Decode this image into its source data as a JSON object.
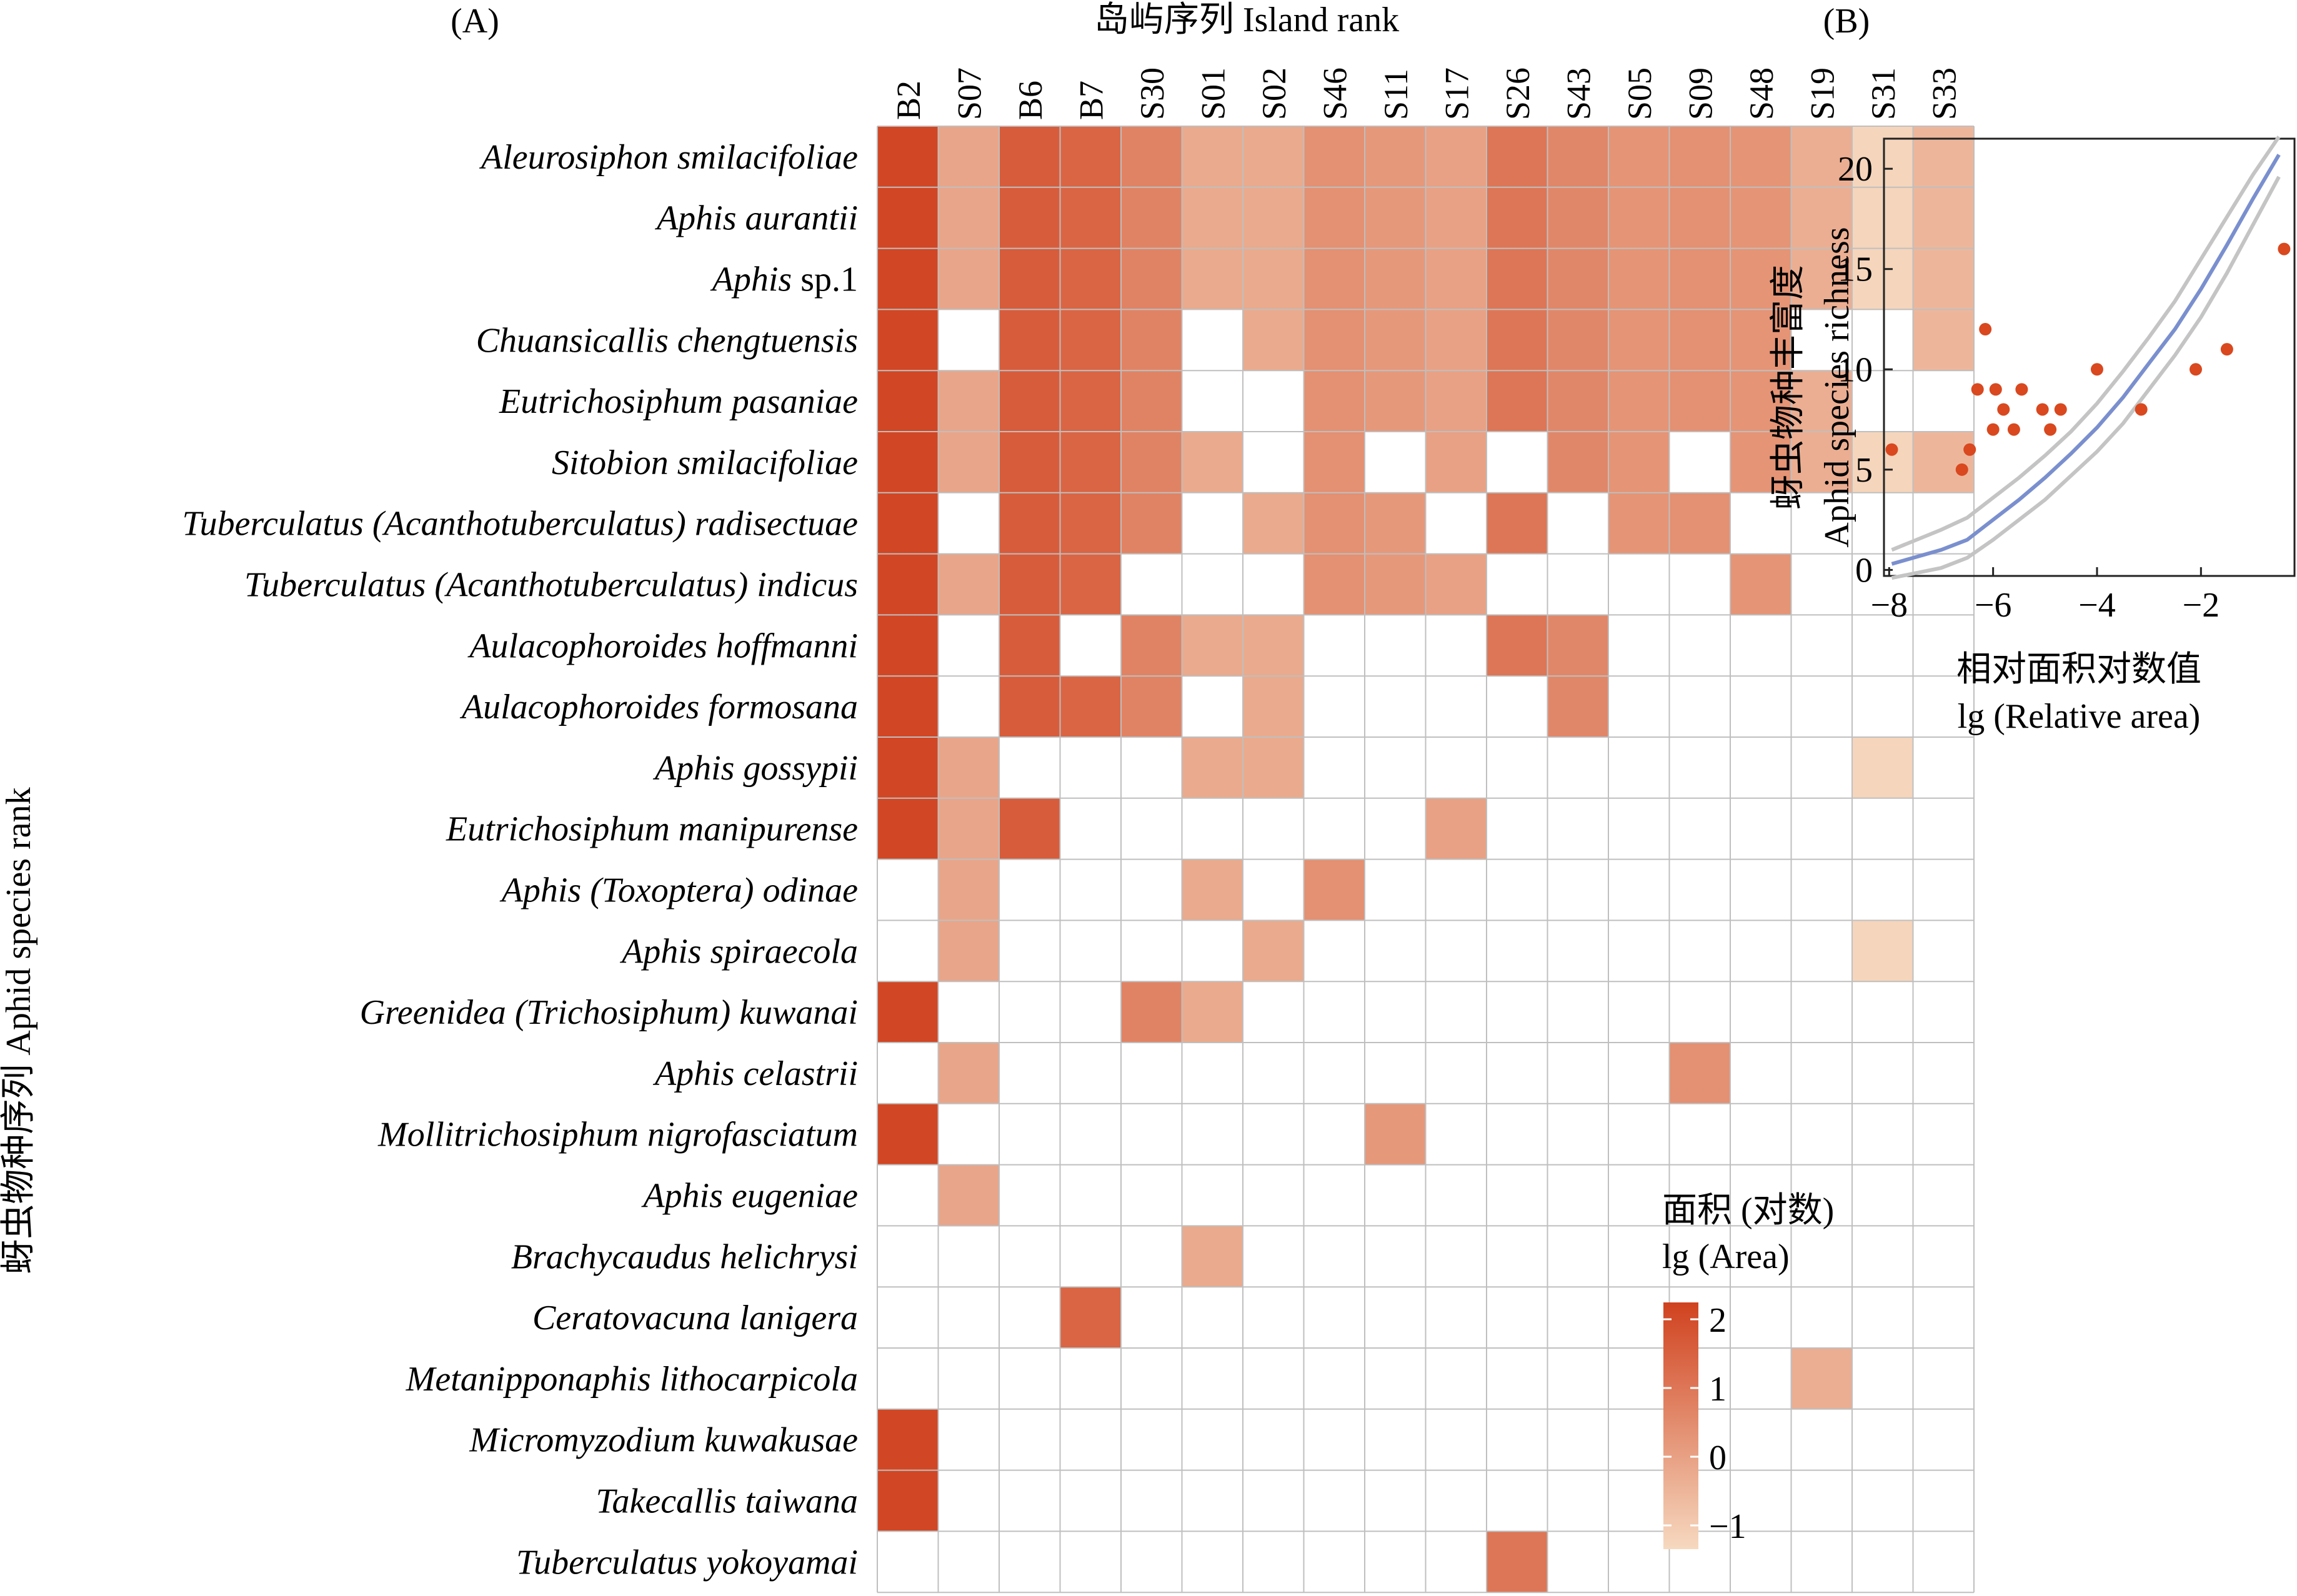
{
  "panels": {
    "a": {
      "panel_label": "(A)",
      "x_title": "岛屿序列 Island rank",
      "y_title": "蚜虫物种序列 Aphid species rank",
      "legend_title_cn": "面积 (对数)",
      "legend_title_en": "lg (Area)",
      "legend_ticks": [
        "2",
        "1",
        "0",
        "−1"
      ]
    },
    "b": {
      "panel_label": "(B)",
      "y_title_cn": "蚜虫物种丰富度",
      "y_title_en": "Aphid species richness",
      "x_title_cn": "相对面积对数值",
      "x_title_en": "lg (Relative area)",
      "x_tick_labels": [
        "−8",
        "−6",
        "−4",
        "−2"
      ],
      "y_tick_labels": [
        "0",
        "5",
        "10",
        "15",
        "20"
      ]
    }
  },
  "colors": {
    "high": "#d0421f",
    "low": "#f6d9c0",
    "grid": "#bfbfbf",
    "dots": "#d9481f",
    "fit": "#7a8fce",
    "band": "#c4c4c4"
  },
  "chart_data": [
    {
      "type": "heatmap",
      "title": "",
      "xlabel": "岛屿序列 Island rank",
      "ylabel": "蚜虫物种序列 Aphid species rank",
      "legend_title": "面积 (对数) lg (Area)",
      "value_range": [
        -1.3,
        2.2
      ],
      "x": [
        "B2",
        "S07",
        "B6",
        "B7",
        "S30",
        "S01",
        "S02",
        "S46",
        "S11",
        "S17",
        "S26",
        "S43",
        "S05",
        "S09",
        "S48",
        "S19",
        "S31",
        "S33"
      ],
      "y": [
        {
          "name": "Aleurosiphon smilacifoliae",
          "plain": ""
        },
        {
          "name": "Aphis aurantii",
          "plain": ""
        },
        {
          "name": "Aphis",
          "plain": " sp.1"
        },
        {
          "name": "Chuansicallis chengtuensis",
          "plain": ""
        },
        {
          "name": "Eutrichosiphum pasaniae",
          "plain": ""
        },
        {
          "name": "Sitobion smilacifoliae",
          "plain": ""
        },
        {
          "name": "Tuberculatus (Acanthotuberculatus) radisectuae",
          "plain": ""
        },
        {
          "name": "Tuberculatus (Acanthotuberculatus) indicus",
          "plain": ""
        },
        {
          "name": "Aulacophoroides hoffmanni",
          "plain": ""
        },
        {
          "name": "Aulacophoroides formosana",
          "plain": ""
        },
        {
          "name": "Aphis gossypii",
          "plain": ""
        },
        {
          "name": "Eutrichosiphum manipurense",
          "plain": ""
        },
        {
          "name": "Aphis (Toxoptera) odinae",
          "plain": ""
        },
        {
          "name": "Aphis spiraecola",
          "plain": ""
        },
        {
          "name": "Greenidea (Trichosiphum) kuwanai",
          "plain": ""
        },
        {
          "name": "Aphis celastrii",
          "plain": ""
        },
        {
          "name": "Mollitrichosiphum nigrofasciatum",
          "plain": ""
        },
        {
          "name": "Aphis eugeniae",
          "plain": ""
        },
        {
          "name": "Brachycaudus helichrysi",
          "plain": ""
        },
        {
          "name": "Ceratovacuna lanigera",
          "plain": ""
        },
        {
          "name": "Metanipponaphis lithocarpicola",
          "plain": ""
        },
        {
          "name": "Micromyzodium kuwakusae",
          "plain": ""
        },
        {
          "name": "Takecallis taiwana",
          "plain": ""
        },
        {
          "name": "Tuberculatus yokoyamai",
          "plain": ""
        }
      ],
      "values": [
        [
          2.1,
          -0.1,
          1.6,
          1.4,
          0.7,
          -0.2,
          -0.2,
          0.4,
          0.2,
          0.0,
          1.0,
          0.6,
          0.3,
          0.4,
          0.3,
          -0.3,
          -1.2,
          -0.5
        ],
        [
          2.1,
          -0.1,
          1.6,
          1.4,
          0.7,
          -0.2,
          -0.2,
          0.4,
          0.2,
          0.0,
          1.0,
          0.6,
          0.3,
          0.4,
          0.3,
          -0.3,
          -1.2,
          -0.5
        ],
        [
          2.1,
          -0.1,
          1.6,
          1.4,
          0.7,
          -0.2,
          -0.2,
          0.4,
          0.2,
          0.0,
          1.0,
          0.6,
          0.3,
          0.4,
          0.3,
          -0.3,
          -1.2,
          -0.5
        ],
        [
          2.1,
          null,
          1.6,
          1.4,
          0.7,
          null,
          -0.2,
          0.4,
          0.2,
          0.0,
          1.0,
          0.6,
          0.3,
          0.4,
          0.3,
          null,
          null,
          -0.5
        ],
        [
          2.1,
          -0.1,
          1.6,
          1.4,
          0.7,
          null,
          null,
          0.4,
          0.2,
          0.0,
          1.0,
          0.6,
          0.3,
          0.4,
          0.3,
          -0.3,
          null,
          null
        ],
        [
          2.1,
          -0.1,
          1.6,
          1.4,
          0.7,
          -0.2,
          null,
          0.4,
          null,
          0.0,
          null,
          0.6,
          0.3,
          null,
          0.3,
          -0.3,
          -1.2,
          -0.5
        ],
        [
          2.1,
          null,
          1.6,
          1.4,
          0.7,
          null,
          -0.2,
          0.4,
          0.2,
          null,
          1.0,
          null,
          0.3,
          0.4,
          null,
          null,
          null,
          null
        ],
        [
          2.1,
          -0.1,
          1.6,
          1.4,
          null,
          null,
          null,
          0.4,
          0.2,
          0.0,
          null,
          null,
          null,
          null,
          0.3,
          null,
          null,
          null
        ],
        [
          2.1,
          null,
          1.6,
          null,
          0.7,
          -0.2,
          -0.2,
          null,
          null,
          null,
          1.0,
          0.6,
          null,
          null,
          null,
          null,
          null,
          null
        ],
        [
          2.1,
          null,
          1.6,
          1.4,
          0.7,
          null,
          -0.2,
          null,
          null,
          null,
          null,
          0.6,
          null,
          null,
          null,
          null,
          null,
          null
        ],
        [
          2.1,
          -0.1,
          null,
          null,
          null,
          -0.2,
          -0.2,
          null,
          null,
          null,
          null,
          null,
          null,
          null,
          null,
          null,
          -1.2,
          null
        ],
        [
          2.1,
          -0.1,
          1.6,
          null,
          null,
          null,
          null,
          null,
          null,
          0.0,
          null,
          null,
          null,
          null,
          null,
          null,
          null,
          null
        ],
        [
          null,
          -0.1,
          null,
          null,
          null,
          -0.2,
          null,
          0.4,
          null,
          null,
          null,
          null,
          null,
          null,
          null,
          null,
          null,
          null
        ],
        [
          null,
          -0.1,
          null,
          null,
          null,
          null,
          -0.2,
          null,
          null,
          null,
          null,
          null,
          null,
          null,
          null,
          null,
          -1.2,
          null
        ],
        [
          2.1,
          null,
          null,
          null,
          0.7,
          -0.2,
          null,
          null,
          null,
          null,
          null,
          null,
          null,
          null,
          null,
          null,
          null,
          null
        ],
        [
          null,
          -0.1,
          null,
          null,
          null,
          null,
          null,
          null,
          null,
          null,
          null,
          null,
          null,
          0.4,
          null,
          null,
          null,
          null
        ],
        [
          2.1,
          null,
          null,
          null,
          null,
          null,
          null,
          null,
          0.2,
          null,
          null,
          null,
          null,
          null,
          null,
          null,
          null,
          null
        ],
        [
          null,
          -0.1,
          null,
          null,
          null,
          null,
          null,
          null,
          null,
          null,
          null,
          null,
          null,
          null,
          null,
          null,
          null,
          null
        ],
        [
          null,
          null,
          null,
          null,
          null,
          -0.2,
          null,
          null,
          null,
          null,
          null,
          null,
          null,
          null,
          null,
          null,
          null,
          null
        ],
        [
          null,
          null,
          null,
          1.4,
          null,
          null,
          null,
          null,
          null,
          null,
          null,
          null,
          null,
          null,
          null,
          null,
          null,
          null
        ],
        [
          null,
          null,
          null,
          null,
          null,
          null,
          null,
          null,
          null,
          null,
          null,
          null,
          null,
          null,
          null,
          -0.3,
          null,
          null
        ],
        [
          2.1,
          null,
          null,
          null,
          null,
          null,
          null,
          null,
          null,
          null,
          null,
          null,
          null,
          null,
          null,
          null,
          null,
          null
        ],
        [
          2.1,
          null,
          null,
          null,
          null,
          null,
          null,
          null,
          null,
          null,
          null,
          null,
          null,
          null,
          null,
          null,
          null,
          null
        ],
        [
          null,
          null,
          null,
          null,
          null,
          null,
          null,
          null,
          null,
          null,
          1.0,
          null,
          null,
          null,
          null,
          null,
          null,
          null
        ]
      ]
    },
    {
      "type": "scatter",
      "title": "",
      "xlabel": "相对面积对数值 lg (Relative area)",
      "ylabel": "蚜虫物种丰富度 Aphid species richness",
      "xlim": [
        -8.1,
        -0.2
      ],
      "ylim": [
        -0.3,
        21.5
      ],
      "grid": false,
      "points": [
        {
          "x": -7.95,
          "y": 6
        },
        {
          "x": -6.6,
          "y": 5
        },
        {
          "x": -6.45,
          "y": 6
        },
        {
          "x": -6.3,
          "y": 9
        },
        {
          "x": -6.15,
          "y": 12
        },
        {
          "x": -6.0,
          "y": 7
        },
        {
          "x": -5.95,
          "y": 9
        },
        {
          "x": -5.8,
          "y": 8
        },
        {
          "x": -5.6,
          "y": 7
        },
        {
          "x": -5.45,
          "y": 9
        },
        {
          "x": -5.05,
          "y": 8
        },
        {
          "x": -4.9,
          "y": 7
        },
        {
          "x": -4.7,
          "y": 8
        },
        {
          "x": -4.0,
          "y": 10
        },
        {
          "x": -3.15,
          "y": 8
        },
        {
          "x": -2.1,
          "y": 10
        },
        {
          "x": -1.5,
          "y": 11
        },
        {
          "x": -0.4,
          "y": 16
        }
      ],
      "fit": {
        "x": [
          -7.95,
          -7.0,
          -6.5,
          -6.0,
          -5.5,
          -5.0,
          -4.5,
          -4.0,
          -3.5,
          -3.0,
          -2.5,
          -2.0,
          -1.5,
          -1.0,
          -0.5
        ],
        "y": [
          0.3,
          1.0,
          1.5,
          2.5,
          3.5,
          4.6,
          5.8,
          7.1,
          8.6,
          10.3,
          12.0,
          14.0,
          16.2,
          18.5,
          20.7
        ]
      },
      "ci_upper": [
        1.0,
        2.0,
        2.6,
        3.6,
        4.6,
        5.7,
        6.9,
        8.3,
        9.9,
        11.6,
        13.4,
        15.5,
        17.6,
        19.7,
        21.6
      ],
      "ci_lower": [
        -0.4,
        0.1,
        0.6,
        1.5,
        2.5,
        3.5,
        4.7,
        5.9,
        7.3,
        9.0,
        10.7,
        12.6,
        14.8,
        17.2,
        19.6
      ]
    }
  ]
}
